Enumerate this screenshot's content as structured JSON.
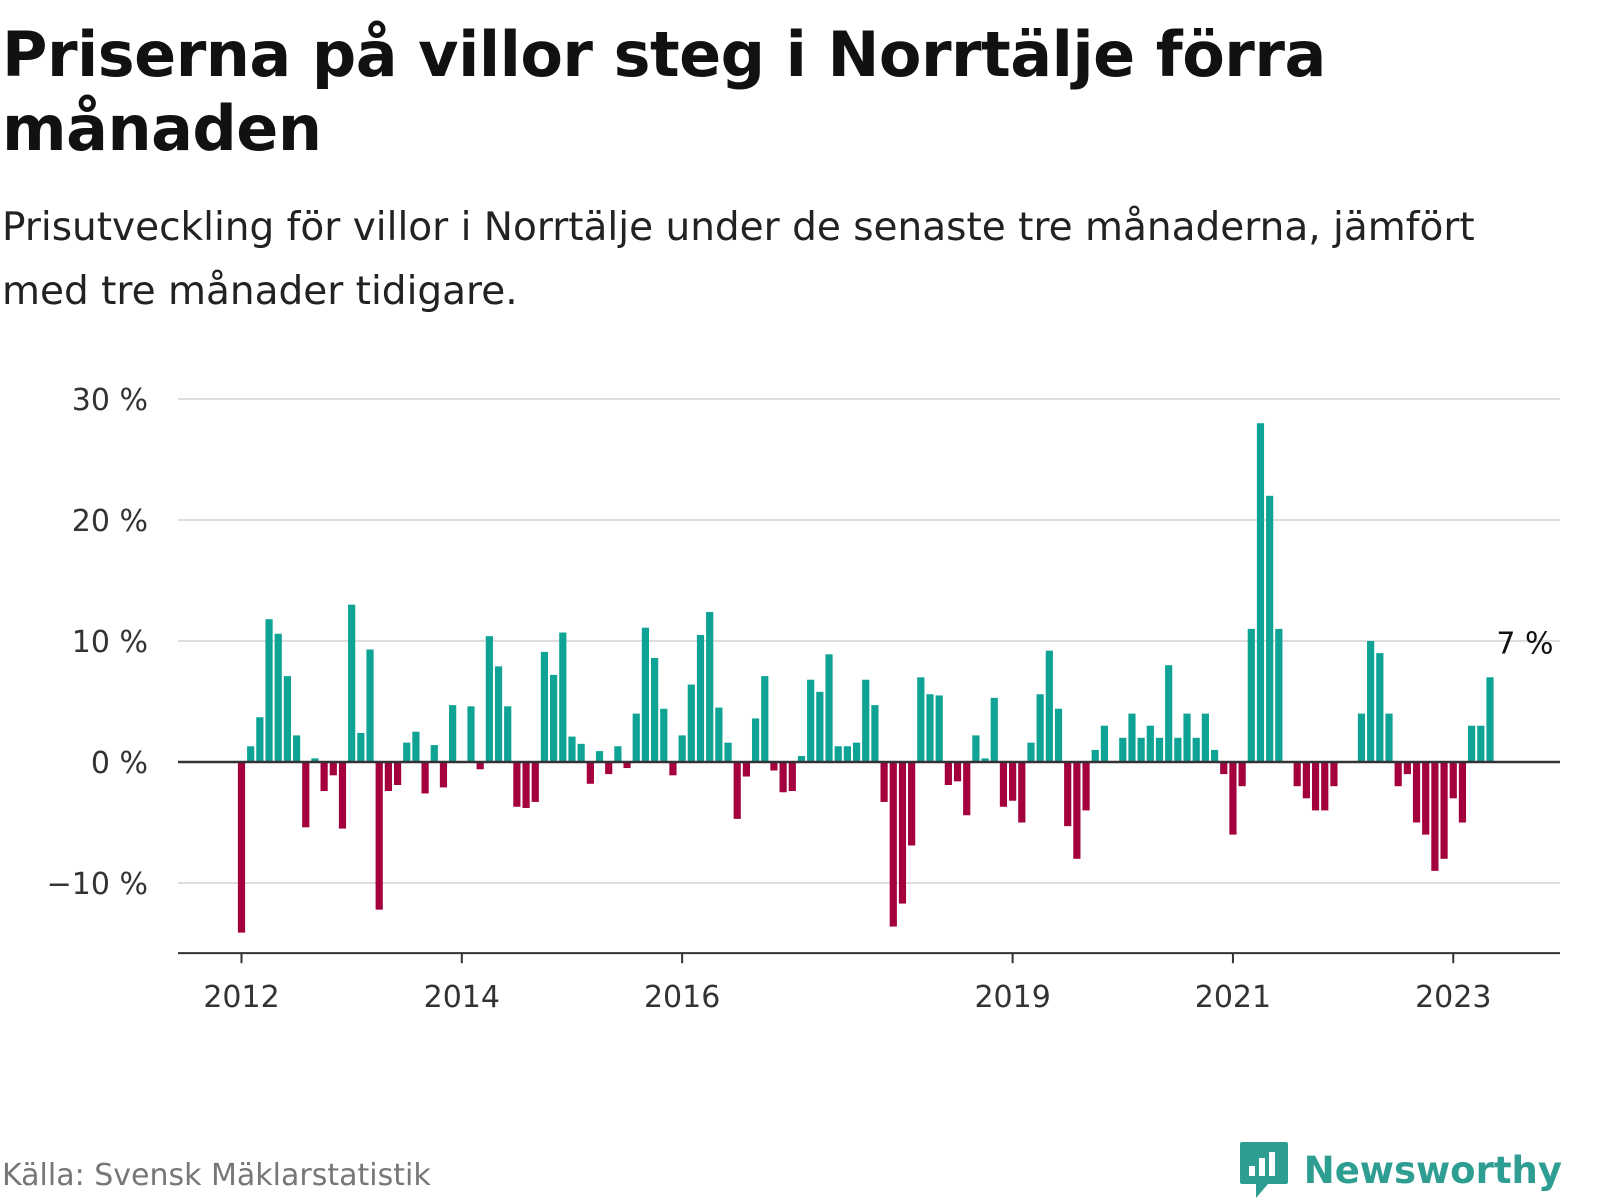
{
  "title": "Priserna på villor steg i Norrtälje förra månaden",
  "subtitle": "Prisutveckling för villor i Norrtälje under de senaste tre månaderna, jämfört med tre månader tidigare.",
  "source": "Källa: Svensk Mäklarstatistik",
  "brand": "Newsworthy",
  "colors": {
    "positive": "#0fa396",
    "negative": "#a3003d",
    "grid": "#dddddd",
    "axis": "#333333",
    "brand": "#2f9e92"
  },
  "chart_data": {
    "type": "bar",
    "title": "Priserna på villor steg i Norrtälje förra månaden",
    "xlabel": "",
    "ylabel": "",
    "ylim": [
      -15.8,
      30
    ],
    "yticks": [
      -10,
      0,
      10,
      20,
      30
    ],
    "ytick_labels": [
      "−10 %",
      "0 %",
      "10 %",
      "20 %",
      "30 %"
    ],
    "grid": true,
    "start": "2012-01",
    "xticks": [
      {
        "label": "2012",
        "index": 0
      },
      {
        "label": "2014",
        "index": 24
      },
      {
        "label": "2016",
        "index": 48
      },
      {
        "label": "2019",
        "index": 84
      },
      {
        "label": "2021",
        "index": 108
      },
      {
        "label": "2023",
        "index": 132
      }
    ],
    "last_label": "7 %",
    "values": [
      -14.1,
      1.3,
      3.7,
      11.8,
      10.6,
      7.1,
      2.2,
      -5.4,
      0.3,
      -2.4,
      -1.1,
      -5.5,
      13.0,
      2.4,
      9.3,
      -12.2,
      -2.4,
      -1.9,
      1.6,
      2.5,
      -2.6,
      1.4,
      -2.1,
      4.7,
      0.0,
      4.6,
      -0.6,
      10.4,
      7.9,
      4.6,
      -3.7,
      -3.8,
      -3.3,
      9.1,
      7.2,
      10.7,
      2.1,
      1.5,
      -1.8,
      0.9,
      -1.0,
      1.3,
      -0.5,
      4.0,
      11.1,
      8.6,
      4.4,
      -1.1,
      2.2,
      6.4,
      10.5,
      12.4,
      4.5,
      1.6,
      -4.7,
      -1.2,
      3.6,
      7.1,
      -0.7,
      -2.5,
      -2.4,
      0.5,
      6.8,
      5.8,
      8.9,
      1.3,
      1.3,
      1.6,
      6.8,
      4.7,
      -3.3,
      -13.6,
      -11.7,
      -6.9,
      7.0,
      5.6,
      5.5,
      -1.9,
      -1.6,
      -4.4,
      2.2,
      0.3,
      5.3,
      -3.7,
      -3.2,
      -5.0,
      1.6,
      5.6,
      9.2,
      4.4,
      -5.3,
      -8.0,
      -4.0,
      1.0,
      3.0,
      0.0,
      2.0,
      4.0,
      2.0,
      3.0,
      2.0,
      8.0,
      2.0,
      4.0,
      2.0,
      4.0,
      1.0,
      -1.0,
      -6.0,
      -2.0,
      11.0,
      28.0,
      22.0,
      11.0,
      0.0,
      -2.0,
      -3.0,
      -4.0,
      -4.0,
      -2.0,
      0.0,
      0.0,
      4.0,
      10.0,
      9.0,
      4.0,
      -2.0,
      -1.0,
      -5.0,
      -6.0,
      -9.0,
      -8.0,
      -3.0,
      -5.0,
      3.0,
      3.0,
      7.0
    ]
  }
}
